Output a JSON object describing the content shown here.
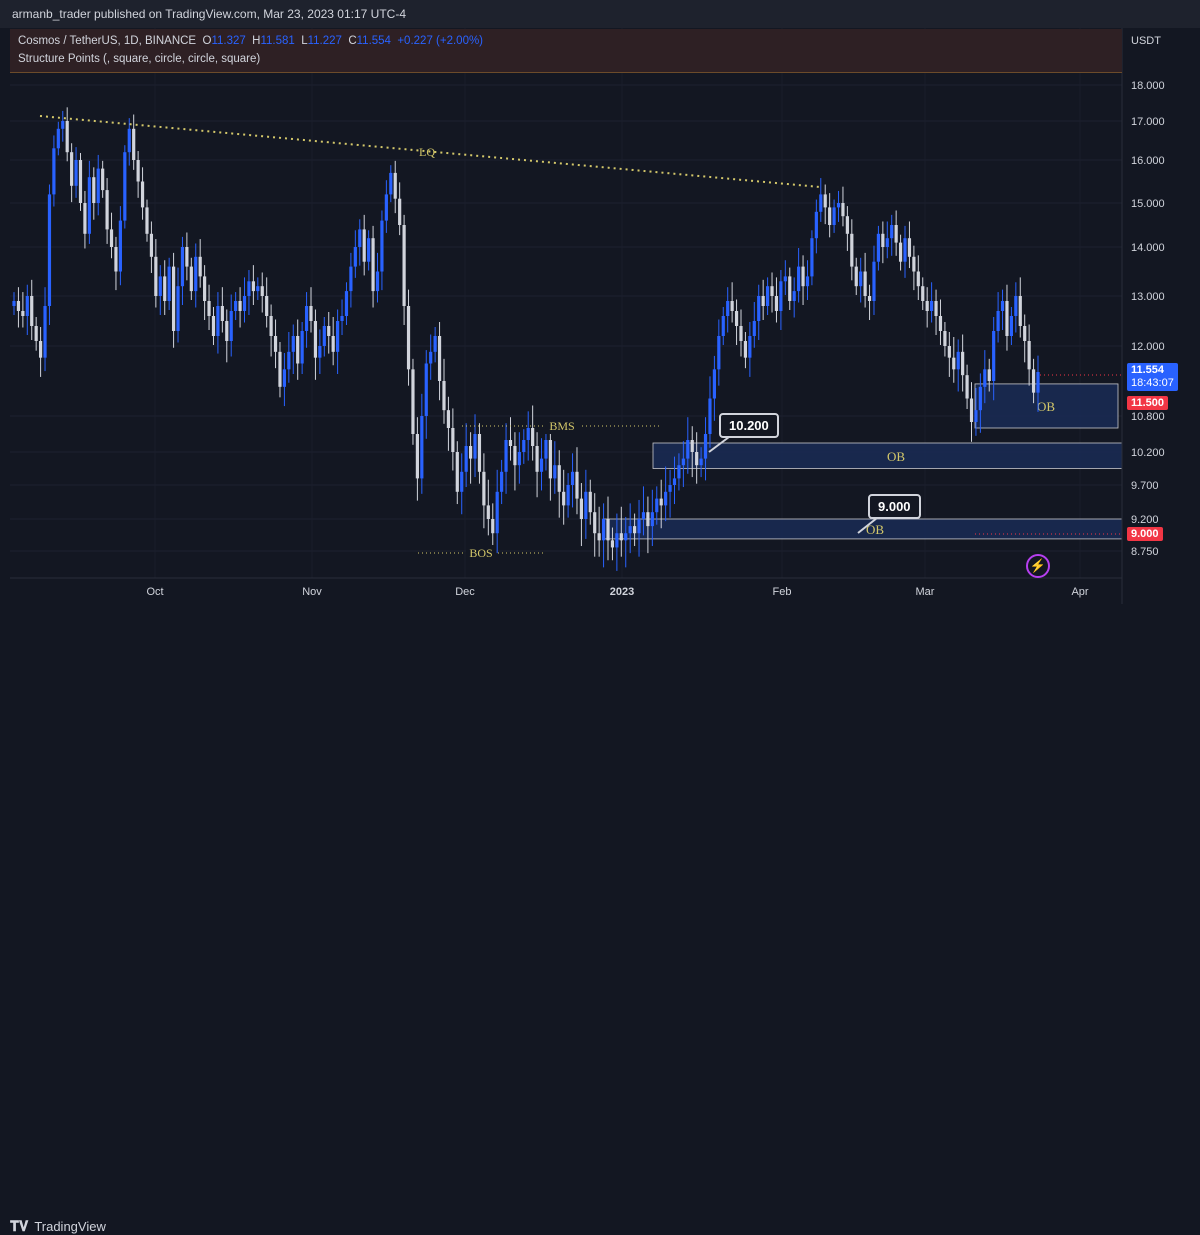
{
  "publisher": "armanb_trader published on TradingView.com, Mar 23, 2023 01:17 UTC-4",
  "symbol_line": {
    "name": "Cosmos / TetherUS, 1D, BINANCE",
    "o_label": "O",
    "o": "11.327",
    "h_label": "H",
    "h": "11.581",
    "l_label": "L",
    "l": "11.227",
    "c_label": "C",
    "c": "11.554",
    "change": "+0.227 (+2.00%)"
  },
  "indicator_line": "Structure Points (, square, circle, circle, square)",
  "currency": "USDT",
  "brand": "TradingView",
  "colors": {
    "up": "#2962ff",
    "down": "#d1d4dc",
    "ob_fill": "#1a2b55",
    "ob_border": "#c8c9cc",
    "lq": "#d4c86a",
    "label": "#d4c86a",
    "price_badge": "#2962ff",
    "red_badge": "#f23645"
  },
  "chart_data": {
    "type": "candlestick",
    "y_ticks": [
      "18.000",
      "17.000",
      "16.000",
      "15.000",
      "14.000",
      "13.000",
      "12.000",
      "10.800",
      "10.200",
      "9.700",
      "9.200",
      "8.750"
    ],
    "x_ticks": [
      "Oct",
      "Nov",
      "Dec",
      "2023",
      "Feb",
      "Mar",
      "Apr"
    ],
    "annotations": [
      "LQ",
      "BMS",
      "BOS",
      "OB",
      "OB",
      "OB"
    ],
    "callouts": [
      "10.200",
      "9.000"
    ],
    "last_price": "11.554",
    "countdown": "18:43:07",
    "price_badges": [
      "11.500",
      "9.000"
    ],
    "ob_zones": [
      {
        "label": "OB",
        "top": 11.35,
        "bottom": 10.6
      },
      {
        "label": "OB",
        "top": 10.35,
        "bottom": 9.95
      },
      {
        "label": "OB",
        "top": 9.2,
        "bottom": 8.92
      }
    ],
    "series_close": [
      12.9,
      12.7,
      12.6,
      13.0,
      12.4,
      12.1,
      11.8,
      12.8,
      15.2,
      16.3,
      16.8,
      17.0,
      16.2,
      15.4,
      16.0,
      15.0,
      14.3,
      15.6,
      15.0,
      15.8,
      15.3,
      14.4,
      14.0,
      13.5,
      14.6,
      16.2,
      16.8,
      16.0,
      15.5,
      14.9,
      14.3,
      13.8,
      13.0,
      13.4,
      12.9,
      13.6,
      12.3,
      13.2,
      14.0,
      13.6,
      13.1,
      13.8,
      13.4,
      12.9,
      12.6,
      12.2,
      12.8,
      12.5,
      12.1,
      12.7,
      12.9,
      12.7,
      13.0,
      13.3,
      13.1,
      13.2,
      13.0,
      12.6,
      12.2,
      11.9,
      11.3,
      11.6,
      11.9,
      12.2,
      11.7,
      12.3,
      12.8,
      12.5,
      11.8,
      12.0,
      12.4,
      12.2,
      11.9,
      12.5,
      12.6,
      13.1,
      13.6,
      14.0,
      14.4,
      13.7,
      14.2,
      13.1,
      13.5,
      14.6,
      15.2,
      15.7,
      15.1,
      14.5,
      12.8,
      11.6,
      10.5,
      9.8,
      10.8,
      11.7,
      11.9,
      12.2,
      11.4,
      10.9,
      10.6,
      10.2,
      9.6,
      9.9,
      10.3,
      10.1,
      10.5,
      9.9,
      9.4,
      9.2,
      9.0,
      9.6,
      9.9,
      10.4,
      10.3,
      10.0,
      10.2,
      10.4,
      10.6,
      10.3,
      9.9,
      10.1,
      10.4,
      9.8,
      10.0,
      9.6,
      9.4,
      9.7,
      9.9,
      9.5,
      9.2,
      9.6,
      9.3,
      9.0,
      8.9,
      9.2,
      8.9,
      8.8,
      9.0,
      8.9,
      9.0,
      9.1,
      9.0,
      9.2,
      9.3,
      9.1,
      9.3,
      9.5,
      9.4,
      9.6,
      9.7,
      9.8,
      10.0,
      10.1,
      10.4,
      10.2,
      10.0,
      10.1,
      10.5,
      11.1,
      11.6,
      12.2,
      12.6,
      12.9,
      12.7,
      12.4,
      12.1,
      11.8,
      12.2,
      12.5,
      13.0,
      12.8,
      13.2,
      13.0,
      12.7,
      13.3,
      13.4,
      12.9,
      13.1,
      13.6,
      13.2,
      13.4,
      14.2,
      14.8,
      15.2,
      14.9,
      14.5,
      14.9,
      15.0,
      14.7,
      14.3,
      13.6,
      13.2,
      13.5,
      13.0,
      12.9,
      13.7,
      14.3,
      14.0,
      14.2,
      14.5,
      14.1,
      13.7,
      14.2,
      13.8,
      13.5,
      13.2,
      12.9,
      12.7,
      12.9,
      12.6,
      12.3,
      12.0,
      11.8,
      11.6,
      11.9,
      11.5,
      11.1,
      10.7,
      10.9,
      11.3,
      11.6,
      11.4,
      12.3,
      12.7,
      12.9,
      12.2,
      12.6,
      13.0,
      12.4,
      12.1,
      11.6,
      11.2,
      11.554
    ]
  }
}
